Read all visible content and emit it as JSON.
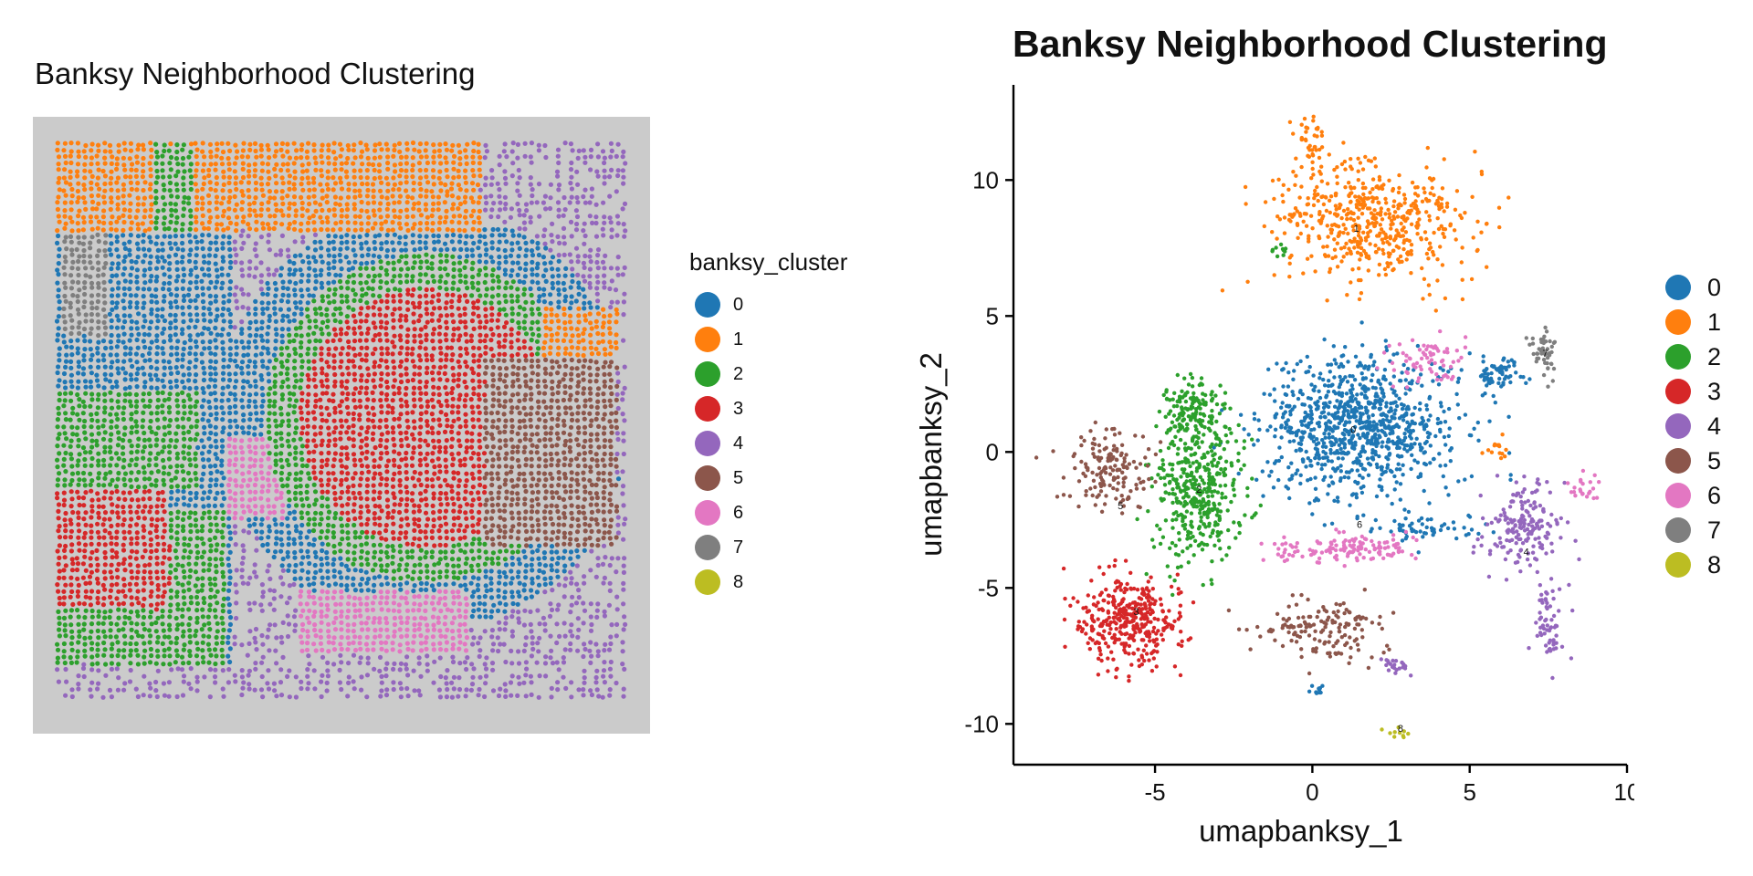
{
  "chart_data": [
    {
      "type": "scatter",
      "title": "Banksy Neighborhood Clustering",
      "legend_title": "banksy_cluster",
      "legend_position": "right",
      "background": "#cbcbcb",
      "categories": [
        "0",
        "1",
        "2",
        "3",
        "4",
        "5",
        "6",
        "7",
        "8"
      ],
      "colors": [
        "#1f77b4",
        "#ff7f0e",
        "#2ca02c",
        "#d62728",
        "#9467bd",
        "#8c564b",
        "#e377c2",
        "#7f7f7f",
        "#bcbd22"
      ]
    },
    {
      "type": "scatter",
      "title": "Banksy Neighborhood Clustering",
      "xlabel": "umapbanksy_1",
      "ylabel": "umapbanksy_2",
      "xlim": [
        -9.5,
        10
      ],
      "ylim": [
        -11.5,
        13.5
      ],
      "xticks": [
        -5,
        0,
        5,
        10
      ],
      "yticks": [
        -10,
        -5,
        0,
        5,
        10
      ],
      "xtick_labels": [
        "-5",
        "0",
        "5",
        "10"
      ],
      "ytick_labels": [
        "-10",
        "-5",
        "0",
        "5",
        "10"
      ],
      "legend_position": "right",
      "grid": false,
      "series": [
        {
          "name": "0",
          "color": "#1f77b4",
          "label_at": [
            1.3,
            0.7
          ],
          "blobs": [
            [
              1.5,
              0.9,
              2.8,
              2.3,
              900
            ],
            [
              6.0,
              2.9,
              0.7,
              0.8,
              60
            ],
            [
              0.2,
              -8.8,
              0.3,
              0.3,
              10
            ],
            [
              3.5,
              -2.8,
              1.5,
              0.5,
              60
            ]
          ]
        },
        {
          "name": "1",
          "color": "#ff7f0e",
          "label_at": [
            1.4,
            8.1
          ],
          "blobs": [
            [
              1.8,
              8.5,
              3.0,
              1.9,
              520
            ],
            [
              -0.1,
              11.3,
              0.5,
              0.9,
              40
            ],
            [
              5.9,
              0.1,
              0.5,
              0.4,
              14
            ]
          ]
        },
        {
          "name": "2",
          "color": "#2ca02c",
          "label_at": [
            -3.6,
            -1.5
          ],
          "blobs": [
            [
              -3.6,
              -1.4,
              1.3,
              2.3,
              380
            ],
            [
              -3.8,
              1.4,
              0.9,
              1.2,
              160
            ],
            [
              -1.1,
              7.4,
              0.3,
              0.3,
              10
            ]
          ]
        },
        {
          "name": "3",
          "color": "#d62728",
          "label_at": [
            -5.6,
            -6.0
          ],
          "blobs": [
            [
              -5.8,
              -6.2,
              1.5,
              1.5,
              360
            ]
          ]
        },
        {
          "name": "4",
          "color": "#9467bd",
          "label_at": [
            6.8,
            -3.8
          ],
          "blobs": [
            [
              6.6,
              -2.9,
              1.2,
              1.5,
              170
            ],
            [
              7.6,
              -6.2,
              0.5,
              1.6,
              60
            ],
            [
              2.6,
              -7.8,
              0.7,
              0.3,
              22
            ]
          ]
        },
        {
          "name": "5",
          "color": "#8c564b",
          "label_at": [
            -6.1,
            -2.1
          ],
          "blobs": [
            [
              -6.5,
              -0.6,
              1.2,
              1.3,
              150
            ],
            [
              0.3,
              -6.5,
              1.6,
              1.0,
              150
            ]
          ]
        },
        {
          "name": "6",
          "color": "#e377c2",
          "label_at": [
            1.5,
            -2.8
          ],
          "blobs": [
            [
              1.0,
              -3.6,
              2.1,
              0.5,
              130
            ],
            [
              3.6,
              3.4,
              1.3,
              0.8,
              70
            ],
            [
              8.6,
              -1.3,
              0.4,
              0.5,
              22
            ]
          ]
        },
        {
          "name": "7",
          "color": "#7f7f7f",
          "label_at": [
            7.4,
            3.5
          ],
          "blobs": [
            [
              7.4,
              3.6,
              0.4,
              0.8,
              50
            ]
          ]
        },
        {
          "name": "8",
          "color": "#bcbd22",
          "label_at": [
            2.8,
            -10.3
          ],
          "blobs": [
            [
              2.7,
              -10.3,
              0.35,
              0.15,
              10
            ]
          ]
        }
      ]
    }
  ]
}
